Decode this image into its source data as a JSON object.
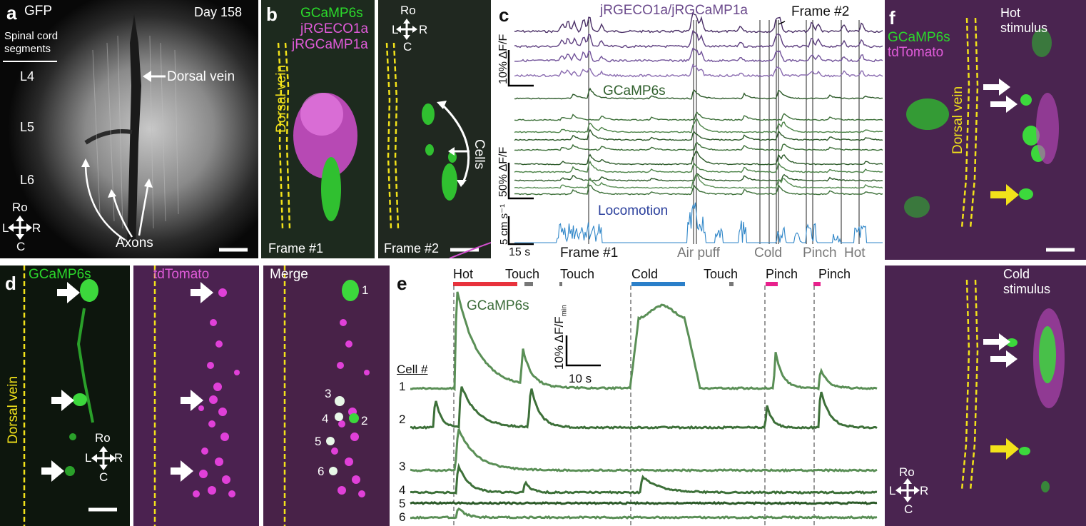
{
  "panels": {
    "a": {
      "label": "a",
      "title_left": "GFP",
      "title_right": "Day 158",
      "segments_label": "Spinal cord segments",
      "segments": [
        "L4",
        "L5",
        "L6"
      ],
      "annotations": {
        "dorsal_vein": "Dorsal vein",
        "axons": "Axons"
      },
      "compass": {
        "rostral": "Ro",
        "caudal": "C",
        "left": "L",
        "right": "R"
      }
    },
    "b": {
      "label": "b",
      "legend": [
        "GCaMP6s",
        "jRGECO1a",
        "jRGCaMP1a"
      ],
      "vein_label": "Dorsal vein",
      "frame1": "Frame #1",
      "frame2": "Frame #2",
      "cells_label": "Cells",
      "compass": {
        "rostral": "Ro",
        "caudal": "C",
        "left": "L",
        "right": "R"
      }
    },
    "c": {
      "label": "c",
      "red_title": "jRGECO1a/jRGCaMP1a",
      "green_title": "GCaMP6s",
      "loco_title": "Locomotion",
      "frame2_marker": "Frame #2",
      "scale_red": "10% ΔF/F",
      "scale_green": "50% ΔF/F",
      "scale_loco": "5 cm s⁻¹",
      "scale_time": "15 s",
      "events": [
        "Frame #1",
        "Air puff",
        "Cold",
        "Pinch",
        "Hot"
      ]
    },
    "d": {
      "label": "d",
      "titles": [
        "GCaMP6s",
        "tdTomato",
        "Merge"
      ],
      "vein_label": "Dorsal vein",
      "cell_numbers": [
        "1",
        "2",
        "3",
        "4",
        "5",
        "6"
      ],
      "compass": {
        "rostral": "Ro",
        "caudal": "C",
        "left": "L",
        "right": "R"
      }
    },
    "e": {
      "label": "e",
      "trace_title": "GCaMP6s",
      "scale_y": "10% ΔF/F",
      "scale_y_sub": "min",
      "scale_x": "10 s",
      "cell_header": "Cell #",
      "cells": [
        "1",
        "2",
        "3",
        "4",
        "5",
        "6"
      ],
      "stimuli": [
        {
          "name": "Hot",
          "color": "#e8323c"
        },
        {
          "name": "Touch",
          "color": "#777777"
        },
        {
          "name": "Touch",
          "color": "#777777"
        },
        {
          "name": "Cold",
          "color": "#2a7fc9"
        },
        {
          "name": "Touch",
          "color": "#777777"
        },
        {
          "name": "Pinch",
          "color": "#e8208c"
        },
        {
          "name": "Pinch",
          "color": "#e8208c"
        }
      ]
    },
    "f": {
      "label": "f",
      "legend": [
        "GCaMP6s",
        "tdTomato"
      ],
      "top_caption": "Hot stimulus",
      "bottom_caption": "Cold stimulus",
      "vein_label": "Dorsal vein",
      "compass": {
        "rostral": "Ro",
        "caudal": "C",
        "left": "L",
        "right": "R"
      }
    }
  },
  "colors": {
    "gcamp": "#2bd92b",
    "tdtomato": "#e05bd9",
    "vein": "#f2e21a",
    "trace_purple": "#5a3a78",
    "trace_green": "#3f7a3c",
    "locomotion": "#2f86c8"
  }
}
